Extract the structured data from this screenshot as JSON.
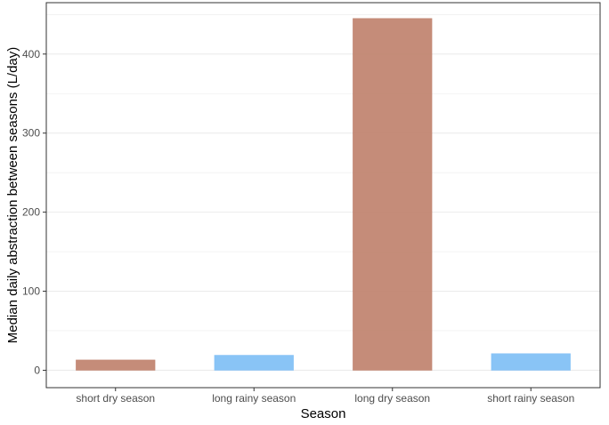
{
  "chart_data": {
    "type": "bar",
    "title": "",
    "xlabel": "Season",
    "ylabel": "Median daily abstraction between seasons (L/day)",
    "categories": [
      "short dry season",
      "long rainy season",
      "long dry season",
      "short rainy season"
    ],
    "values": [
      13,
      19,
      445,
      21
    ],
    "colors": [
      "#C0826E",
      "#7FBFF5",
      "#C0826E",
      "#7FBFF5"
    ],
    "ylim": [
      -22,
      465
    ],
    "yticks": [
      0,
      100,
      200,
      300,
      400
    ],
    "minor_gridlines": [
      50,
      150,
      250,
      350,
      450
    ],
    "grid": true,
    "legend": "none"
  }
}
